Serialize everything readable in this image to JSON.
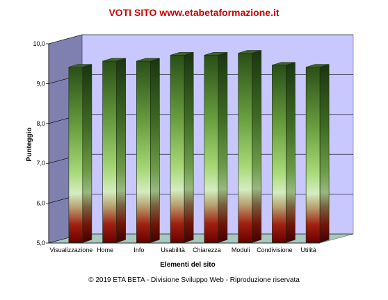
{
  "chart_data": {
    "type": "bar",
    "title": "VOTI SITO www.etabetaformazione.it",
    "xlabel": "Elementi del sito",
    "ylabel": "Punteggio",
    "ylim": [
      5,
      10
    ],
    "yticks": [
      "5,0",
      "6,0",
      "7,0",
      "8,0",
      "9,0",
      "10,0"
    ],
    "categories": [
      "Visualizzazione",
      "Home",
      "Info",
      "Usabilità",
      "Chiarezza",
      "Moduli",
      "Condivisione",
      "Utilità"
    ],
    "values": [
      9.4,
      9.55,
      9.55,
      9.7,
      9.7,
      9.75,
      9.45,
      9.4
    ],
    "grid": true,
    "legend": "none",
    "colors": {
      "bar_top": "#2e5a1c",
      "bar_mid": "#9ad060",
      "bar_light": "#d8ecc8",
      "bar_bottom": "#8a0000",
      "back_wall": "#c8c8ff",
      "side_wall": "#8080b0",
      "floor": "#a8c8c0"
    }
  },
  "footer": "© 2019 ETA BETA - Divisione Sviluppo Web - Riproduzione riservata"
}
